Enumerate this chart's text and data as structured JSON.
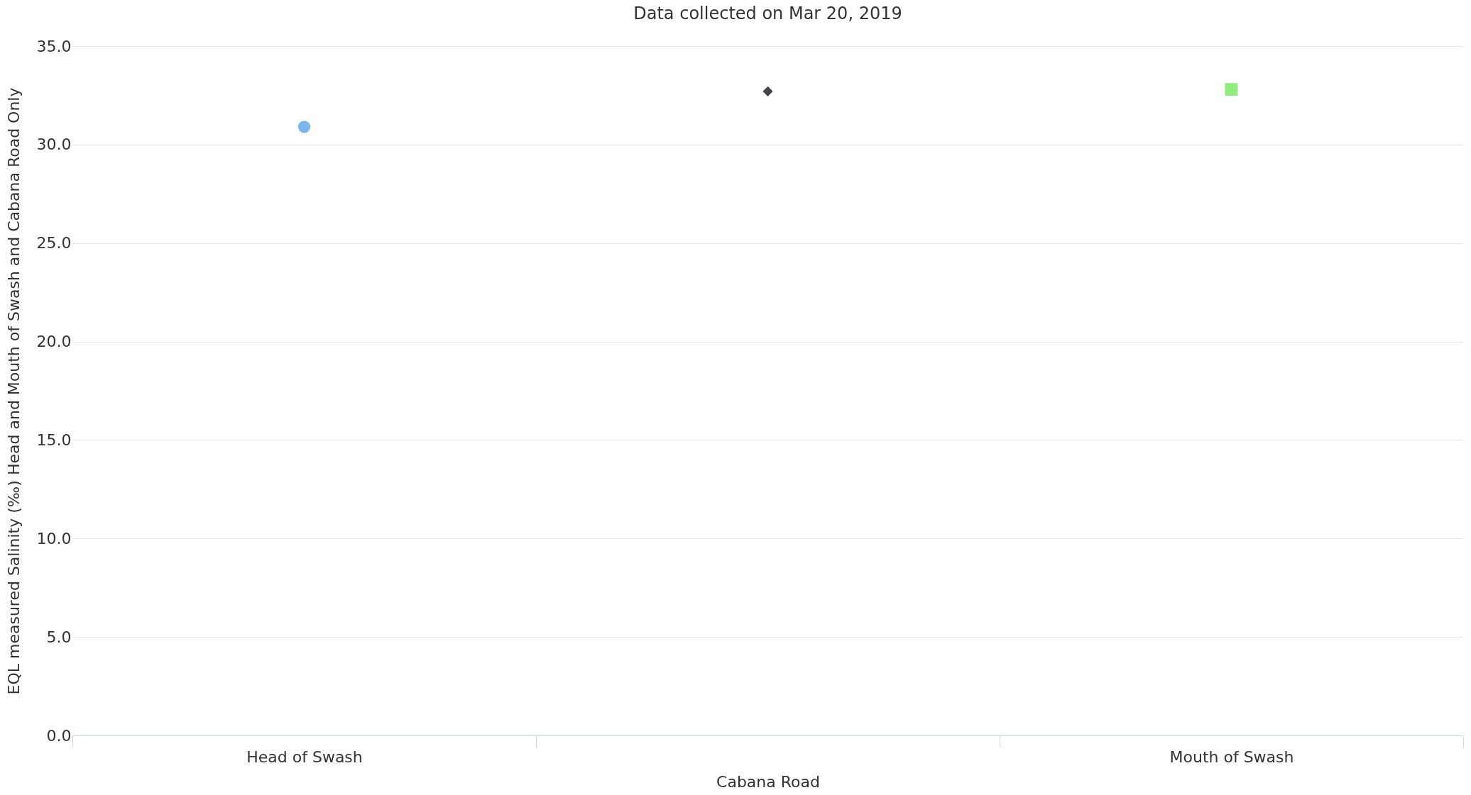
{
  "chart_data": {
    "type": "scatter",
    "title": "Data collected on Mar 20, 2019",
    "xlabel": "Cabana Road",
    "ylabel": "EQL measured Salinity (‰) Head and Mouth of Swash and Cabana Road Only",
    "categories": [
      "Head of Swash",
      null,
      "Mouth of Swash"
    ],
    "series": [
      {
        "color": "#7cb5ec",
        "marker": "circle",
        "values": [
          30.9,
          null,
          null
        ]
      },
      {
        "color": "#434348",
        "marker": "diamond",
        "values": [
          null,
          32.7,
          null
        ]
      },
      {
        "color": "#90ed7d",
        "marker": "square",
        "values": [
          null,
          null,
          32.8
        ]
      }
    ],
    "ylim": [
      0,
      35
    ],
    "yticks": [
      {
        "value": 0,
        "label": "0.0"
      },
      {
        "value": 5,
        "label": "5.0"
      },
      {
        "value": 10,
        "label": "10.0"
      },
      {
        "value": 15,
        "label": "15.0"
      },
      {
        "value": 20,
        "label": "20.0"
      },
      {
        "value": 25,
        "label": "25.0"
      },
      {
        "value": 30,
        "label": "30.0"
      },
      {
        "value": 35,
        "label": "35.0"
      }
    ],
    "grid": "y",
    "legend": false
  }
}
